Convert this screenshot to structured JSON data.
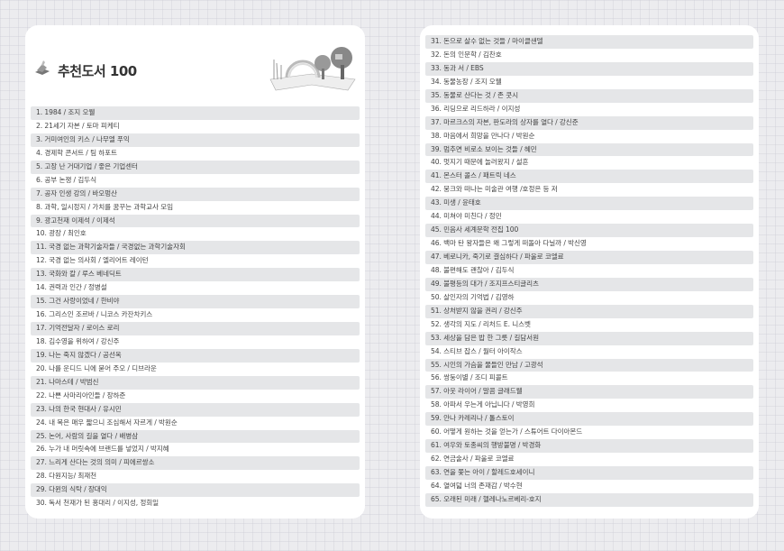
{
  "header": {
    "title": "추천도서 100",
    "icon": "book-stack-icon",
    "illustration": "tree-house-rainbow-book-illustration"
  },
  "colors": {
    "row_shade": "#e5e6e8",
    "text": "#444444",
    "card": "#ffffff",
    "background": "#ececef"
  },
  "left": {
    "items": [
      "1. 1984 / 조지 오웰",
      "2. 21세기 자본 / 토마 피케티",
      "3. 거미여인의 키스 / 나무엘 푸익",
      "4. 경제학 콘서트 / 팀 하포트",
      "5. 고장 난 거대기업  / 좋은 기업센터",
      "6. 공부 논쟁 / 김두식",
      "7. 공자 인생 강의 / 바오펑산",
      "8. 과학, 일시정지 / 가치를 꿈꾸는 과학교사 모임",
      "9. 광고천재 이제석 / 이제석",
      "10. 광장 / 최인호",
      "11. 국경 없는 과학기술자들 / 국경없는 과학기술자회",
      "12. 국경 없는 의사회 / 엘리어트 레이턴",
      "13. 국화와 칼 / 루스 베네딕트",
      "14. 권력과 인간 / 정병설",
      "15. 그건 사랑이었네 / 한비야",
      "16. 그리스인 조르바 / 니코스 카잔차키스",
      "17. 기억전달자 / 로이스 로리",
      "18. 김수영을 위하여 / 강신주",
      "19. 나는 죽지 않겠다 / 공선옥",
      "20. 나를 운디드 니에 묻어 주오 / 디브라운",
      "21. 나마스테 / 박범신",
      "22. 나쁜 사마리아인들 / 장하준",
      "23. 나의 한국 현대사 / 유시민",
      "24. 내 목은 매우 짧으니 조심해서 자르게 / 박원순",
      "25. 논어, 사람의 길을 열다 / 배병삼",
      "26. 누가 내 머릿속에 브랜드를 넣었지 / 박지혜",
      "27. 느리게 산다는 것의 의미 / 피에르쌍소",
      "28. 다원지능/ 최재천",
      "29. 다윈의 식탁 / 장대익",
      "30. 독서 천재가 된 홍대리 / 이지성, 정회일"
    ]
  },
  "right": {
    "items": [
      "31. 돈으로 살수  없는 것들 / 마이클샌델",
      "32. 돈의 인문학 / 김찬호",
      "33. 동과 서 / EBS",
      "34. 동물농장 / 조지 오웰",
      "35. 동물로 산다는 것 / 존 쿳시",
      "36. 리딩으로 리드하라 / 이지성",
      "37. 마르크스의 자본, 판도라의 상자를 열다 / 강신준",
      "38. 마음에서 희망을 만나다 / 박원순",
      "39. 멈추면 비로소 보이는 것들 / 혜민",
      "40. 멋지기 때문에 놀러왔지 / 설흔",
      "41. 몬스터 콜스 / 패트릭 네스",
      "42. 뭉크와 떠나는 미술관 여행 /호정은 등 저",
      "43. 미생 / 윤태호",
      "44. 미쳐야 미친다 / 정민",
      "45. 민음사 세계문학 전집 100",
      "46. 백마 탄 왕자들은 왜 그렇게 떠돌아 다닐까 / 박신영",
      "47. 베로니카, 죽기로 결심하다 / 파울로 코엘료",
      "48. 불편해도 괜찮아 / 김두식",
      "49. 불평등의 대가 / 조지프스티글리츠",
      "50. 살인자의 기억법 / 김영하",
      "51. 상처받지 않을 권리 / 강신주",
      "52. 생각의 지도 / 리처드 E. 니스벳",
      "53. 세상을 담은 밥 한 그릇 / 길담서원",
      "54. 스티브 잡스 / 월터 아이작스",
      "55. 시인의 가슴을 물들인 만남 / 고광석",
      "56. 쌍둥이별 / 조디 피콜트",
      "57. 아웃 라이어  / 말콤 글래드웰",
      "58. 아파서 우는게 아닙니다 / 박영희",
      "59. 안나 카레리나 / 톨스토이",
      "60. 어떻게 원하는 것을 얻는가 / 스튜어트 다이아몬드",
      "61. 여우와 토종씨의 행방불명 / 박경화",
      "62. 연금술사 / 파울로 코엘료",
      "63. 연을 쫓는 아이 / 할레드호세이니",
      "64. 열여덟 너의 존재감 / 박수현",
      "65. 오래된 미래 / 헬레나노르베리-호지"
    ]
  }
}
